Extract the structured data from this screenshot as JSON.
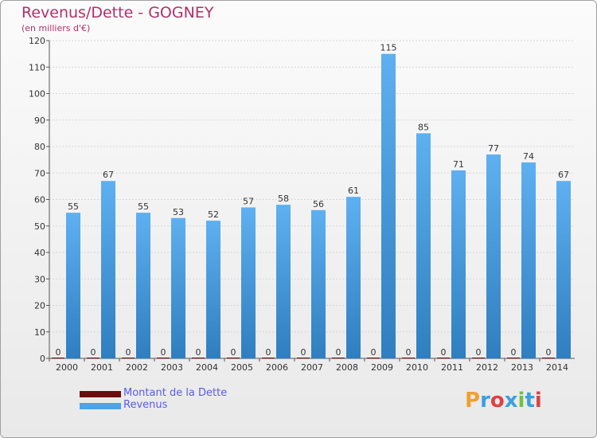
{
  "header": {
    "title": "Revenus/Dette - GOGNEY",
    "subtitle": "(en milliers d'€)"
  },
  "legend": [
    {
      "label": "Montant de la Dette",
      "color": "#6b0d0d"
    },
    {
      "label": "Revenus",
      "color": "#4da3e6"
    }
  ],
  "logo": {
    "text": "Proxiti"
  },
  "chart_data": {
    "type": "bar",
    "categories": [
      "2000",
      "2001",
      "2002",
      "2003",
      "2004",
      "2005",
      "2006",
      "2007",
      "2008",
      "2009",
      "2010",
      "2011",
      "2012",
      "2013",
      "2014"
    ],
    "series": [
      {
        "name": "Montant de la Dette",
        "values": [
          0,
          0,
          0,
          0,
          0,
          0,
          0,
          0,
          0,
          0,
          0,
          0,
          0,
          0,
          0
        ],
        "color": "#6b0d0d"
      },
      {
        "name": "Revenus",
        "values": [
          55,
          67,
          55,
          53,
          52,
          57,
          58,
          56,
          61,
          115,
          85,
          71,
          77,
          74,
          67
        ],
        "color": "#4da3e6"
      }
    ],
    "title": "Revenus/Dette - GOGNEY",
    "ylabel": "(en milliers d'€)",
    "ylim": [
      0,
      120
    ],
    "yticks": [
      0,
      10,
      20,
      30,
      40,
      50,
      60,
      70,
      80,
      90,
      100,
      110,
      120
    ],
    "grid": true,
    "legend_position": "bottom-left"
  }
}
